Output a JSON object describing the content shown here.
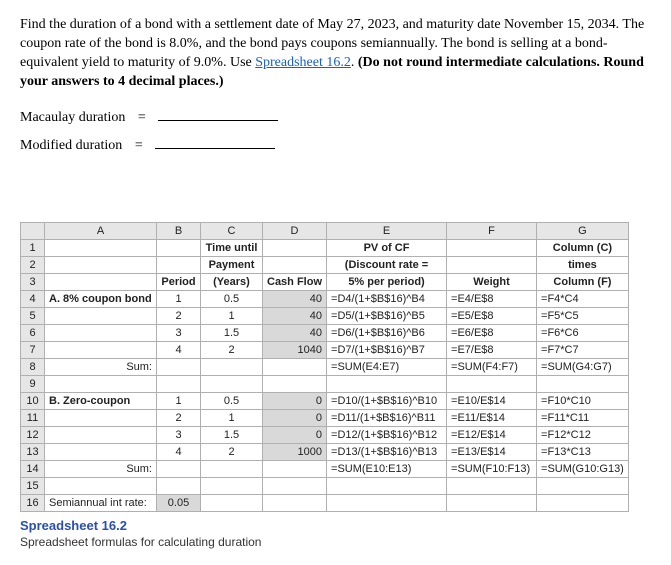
{
  "intro_html": "Find the duration of a bond with a settlement date of May 27, 2023, and maturity date November 15, 2034. The coupon rate of the bond is 8.0%, and the bond pays coupons semiannually. The bond is selling at a bond-equivalent yield to maturity of 9.0%. Use <a href='#' data-name='spreadsheet-link' data-interactable='true'>Spreadsheet 16.2</a>. <b>(Do not round intermediate calculations. Round your answers to 4 decimal places.)</b>",
  "macaulay_label": "Macaulay duration",
  "modified_label": "Modified duration",
  "caption": "Spreadsheet 16.2",
  "subcaption": "Spreadsheet formulas for calculating duration",
  "col_headers": [
    "A",
    "B",
    "C",
    "D",
    "E",
    "F",
    "G"
  ],
  "col_widths": [
    "colA",
    "colB",
    "colC",
    "colD",
    "colE",
    "colF",
    "colG"
  ],
  "rows": [
    {
      "n": "1",
      "cells": [
        {
          "t": "",
          "cls": "l"
        },
        {
          "t": "",
          "cls": ""
        },
        {
          "t": "Time until",
          "cls": "c bold"
        },
        {
          "t": "",
          "cls": ""
        },
        {
          "t": "PV of CF",
          "cls": "c bold"
        },
        {
          "t": "",
          "cls": ""
        },
        {
          "t": "Column (C)",
          "cls": "c bold"
        }
      ]
    },
    {
      "n": "2",
      "cells": [
        {
          "t": "",
          "cls": ""
        },
        {
          "t": "",
          "cls": ""
        },
        {
          "t": "Payment",
          "cls": "c bold"
        },
        {
          "t": "",
          "cls": ""
        },
        {
          "t": "(Discount rate =",
          "cls": "c bold"
        },
        {
          "t": "",
          "cls": ""
        },
        {
          "t": "times",
          "cls": "c bold"
        }
      ]
    },
    {
      "n": "3",
      "cells": [
        {
          "t": "",
          "cls": ""
        },
        {
          "t": "Period",
          "cls": "c bold"
        },
        {
          "t": "(Years)",
          "cls": "c bold"
        },
        {
          "t": "Cash Flow",
          "cls": "c bold"
        },
        {
          "t": "5% per period)",
          "cls": "c bold"
        },
        {
          "t": "Weight",
          "cls": "c bold"
        },
        {
          "t": "Column (F)",
          "cls": "c bold"
        }
      ]
    },
    {
      "n": "4",
      "cells": [
        {
          "t": "A. 8% coupon bond",
          "cls": "l bold"
        },
        {
          "t": "1",
          "cls": "c"
        },
        {
          "t": "0.5",
          "cls": "c"
        },
        {
          "t": "40",
          "cls": "r bg-gray"
        },
        {
          "t": "=D4/(1+$B$16)^B4",
          "cls": "l"
        },
        {
          "t": "=E4/E$8",
          "cls": "l"
        },
        {
          "t": "=F4*C4",
          "cls": "l"
        }
      ]
    },
    {
      "n": "5",
      "cells": [
        {
          "t": "",
          "cls": ""
        },
        {
          "t": "2",
          "cls": "c"
        },
        {
          "t": "1",
          "cls": "c"
        },
        {
          "t": "40",
          "cls": "r bg-gray"
        },
        {
          "t": "=D5/(1+$B$16)^B5",
          "cls": "l"
        },
        {
          "t": "=E5/E$8",
          "cls": "l"
        },
        {
          "t": "=F5*C5",
          "cls": "l"
        }
      ]
    },
    {
      "n": "6",
      "cells": [
        {
          "t": "",
          "cls": ""
        },
        {
          "t": "3",
          "cls": "c"
        },
        {
          "t": "1.5",
          "cls": "c"
        },
        {
          "t": "40",
          "cls": "r bg-gray"
        },
        {
          "t": "=D6/(1+$B$16)^B6",
          "cls": "l"
        },
        {
          "t": "=E6/E$8",
          "cls": "l"
        },
        {
          "t": "=F6*C6",
          "cls": "l"
        }
      ]
    },
    {
      "n": "7",
      "cells": [
        {
          "t": "",
          "cls": ""
        },
        {
          "t": "4",
          "cls": "c"
        },
        {
          "t": "2",
          "cls": "c"
        },
        {
          "t": "1040",
          "cls": "r bg-gray"
        },
        {
          "t": "=D7/(1+$B$16)^B7",
          "cls": "l"
        },
        {
          "t": "=E7/E$8",
          "cls": "l"
        },
        {
          "t": "=F7*C7",
          "cls": "l"
        }
      ]
    },
    {
      "n": "8",
      "cells": [
        {
          "t": "Sum:",
          "cls": "r"
        },
        {
          "t": "",
          "cls": ""
        },
        {
          "t": "",
          "cls": ""
        },
        {
          "t": "",
          "cls": ""
        },
        {
          "t": "=SUM(E4:E7)",
          "cls": "l"
        },
        {
          "t": "=SUM(F4:F7)",
          "cls": "l"
        },
        {
          "t": "=SUM(G4:G7)",
          "cls": "l"
        }
      ]
    },
    {
      "n": "9",
      "cells": [
        {
          "t": "",
          "cls": ""
        },
        {
          "t": "",
          "cls": ""
        },
        {
          "t": "",
          "cls": ""
        },
        {
          "t": "",
          "cls": ""
        },
        {
          "t": "",
          "cls": ""
        },
        {
          "t": "",
          "cls": ""
        },
        {
          "t": "",
          "cls": ""
        }
      ]
    },
    {
      "n": "10",
      "cells": [
        {
          "t": "B. Zero-coupon",
          "cls": "l bold"
        },
        {
          "t": "1",
          "cls": "c"
        },
        {
          "t": "0.5",
          "cls": "c"
        },
        {
          "t": "0",
          "cls": "r bg-gray"
        },
        {
          "t": "=D10/(1+$B$16)^B10",
          "cls": "l"
        },
        {
          "t": "=E10/E$14",
          "cls": "l"
        },
        {
          "t": "=F10*C10",
          "cls": "l"
        }
      ]
    },
    {
      "n": "11",
      "cells": [
        {
          "t": "",
          "cls": ""
        },
        {
          "t": "2",
          "cls": "c"
        },
        {
          "t": "1",
          "cls": "c"
        },
        {
          "t": "0",
          "cls": "r bg-gray"
        },
        {
          "t": "=D11/(1+$B$16)^B11",
          "cls": "l"
        },
        {
          "t": "=E11/E$14",
          "cls": "l"
        },
        {
          "t": "=F11*C11",
          "cls": "l"
        }
      ]
    },
    {
      "n": "12",
      "cells": [
        {
          "t": "",
          "cls": ""
        },
        {
          "t": "3",
          "cls": "c"
        },
        {
          "t": "1.5",
          "cls": "c"
        },
        {
          "t": "0",
          "cls": "r bg-gray"
        },
        {
          "t": "=D12/(1+$B$16)^B12",
          "cls": "l"
        },
        {
          "t": "=E12/E$14",
          "cls": "l"
        },
        {
          "t": "=F12*C12",
          "cls": "l"
        }
      ]
    },
    {
      "n": "13",
      "cells": [
        {
          "t": "",
          "cls": ""
        },
        {
          "t": "4",
          "cls": "c"
        },
        {
          "t": "2",
          "cls": "c"
        },
        {
          "t": "1000",
          "cls": "r bg-gray"
        },
        {
          "t": "=D13/(1+$B$16)^B13",
          "cls": "l"
        },
        {
          "t": "=E13/E$14",
          "cls": "l"
        },
        {
          "t": "=F13*C13",
          "cls": "l"
        }
      ]
    },
    {
      "n": "14",
      "cells": [
        {
          "t": "Sum:",
          "cls": "r"
        },
        {
          "t": "",
          "cls": ""
        },
        {
          "t": "",
          "cls": ""
        },
        {
          "t": "",
          "cls": ""
        },
        {
          "t": "=SUM(E10:E13)",
          "cls": "l"
        },
        {
          "t": "=SUM(F10:F13)",
          "cls": "l"
        },
        {
          "t": "=SUM(G10:G13)",
          "cls": "l"
        }
      ]
    },
    {
      "n": "15",
      "cells": [
        {
          "t": "",
          "cls": ""
        },
        {
          "t": "",
          "cls": ""
        },
        {
          "t": "",
          "cls": ""
        },
        {
          "t": "",
          "cls": ""
        },
        {
          "t": "",
          "cls": ""
        },
        {
          "t": "",
          "cls": ""
        },
        {
          "t": "",
          "cls": ""
        }
      ]
    },
    {
      "n": "16",
      "cells": [
        {
          "t": "Semiannual int rate:",
          "cls": "l"
        },
        {
          "t": "0.05",
          "cls": "c bg-gray"
        },
        {
          "t": "",
          "cls": ""
        },
        {
          "t": "",
          "cls": ""
        },
        {
          "t": "",
          "cls": ""
        },
        {
          "t": "",
          "cls": ""
        },
        {
          "t": "",
          "cls": ""
        }
      ]
    }
  ]
}
